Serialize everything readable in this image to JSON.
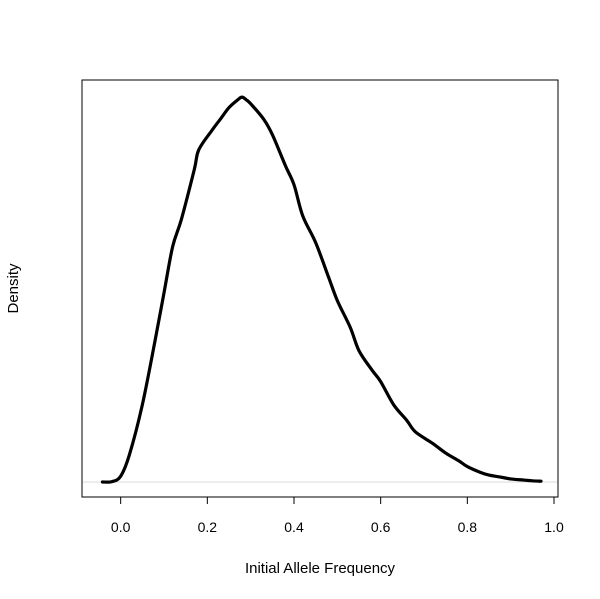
{
  "chart_data": {
    "type": "line",
    "title": "",
    "xlabel": "Initial Allele Frequency",
    "ylabel": "Density",
    "xlim": [
      -0.05,
      0.97
    ],
    "ylim": [
      0,
      1
    ],
    "x_ticks": [
      {
        "value": 0.0,
        "label": "0.0"
      },
      {
        "value": 0.2,
        "label": "0.2"
      },
      {
        "value": 0.4,
        "label": "0.4"
      },
      {
        "value": 0.6,
        "label": "0.6"
      },
      {
        "value": 0.8,
        "label": "0.8"
      },
      {
        "value": 1.0,
        "label": "1.0"
      }
    ],
    "y_ticks_shown": false,
    "baseline": true,
    "series": [
      {
        "color": "#000000",
        "points": [
          [
            -0.042,
            0.0
          ],
          [
            -0.02,
            0.001
          ],
          [
            0.0,
            0.015
          ],
          [
            0.02,
            0.07
          ],
          [
            0.05,
            0.2
          ],
          [
            0.08,
            0.37
          ],
          [
            0.1,
            0.49
          ],
          [
            0.12,
            0.61
          ],
          [
            0.14,
            0.68
          ],
          [
            0.17,
            0.81
          ],
          [
            0.18,
            0.86
          ],
          [
            0.21,
            0.91
          ],
          [
            0.23,
            0.94
          ],
          [
            0.25,
            0.97
          ],
          [
            0.27,
            0.99
          ],
          [
            0.28,
            0.997
          ],
          [
            0.29,
            0.99
          ],
          [
            0.3,
            0.98
          ],
          [
            0.33,
            0.94
          ],
          [
            0.35,
            0.9
          ],
          [
            0.38,
            0.82
          ],
          [
            0.4,
            0.77
          ],
          [
            0.42,
            0.69
          ],
          [
            0.45,
            0.62
          ],
          [
            0.48,
            0.53
          ],
          [
            0.5,
            0.47
          ],
          [
            0.53,
            0.4
          ],
          [
            0.55,
            0.34
          ],
          [
            0.58,
            0.29
          ],
          [
            0.6,
            0.26
          ],
          [
            0.63,
            0.2
          ],
          [
            0.66,
            0.16
          ],
          [
            0.68,
            0.13
          ],
          [
            0.72,
            0.1
          ],
          [
            0.75,
            0.075
          ],
          [
            0.78,
            0.055
          ],
          [
            0.8,
            0.04
          ],
          [
            0.83,
            0.025
          ],
          [
            0.85,
            0.018
          ],
          [
            0.88,
            0.012
          ],
          [
            0.9,
            0.008
          ],
          [
            0.93,
            0.005
          ],
          [
            0.95,
            0.003
          ],
          [
            0.97,
            0.002
          ]
        ]
      }
    ]
  }
}
